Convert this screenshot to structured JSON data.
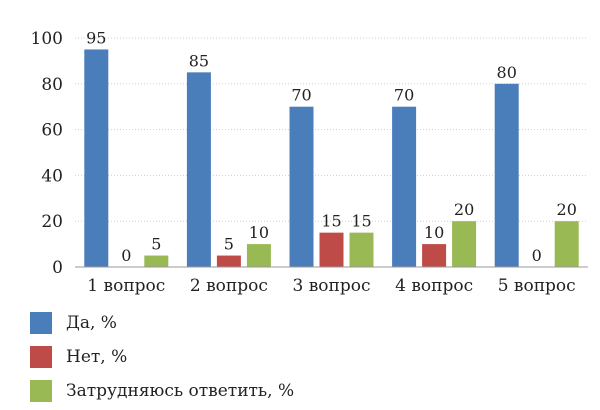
{
  "chart_data": {
    "type": "bar",
    "categories": [
      "1 вопрос",
      "2 вопрос",
      "3 вопрос",
      "4 вопрос",
      "5 вопрос"
    ],
    "series": [
      {
        "name": "Да, %",
        "color": "#4a7ebb",
        "values": [
          95,
          85,
          70,
          70,
          80
        ]
      },
      {
        "name": "Нет, %",
        "color": "#be4b48",
        "values": [
          0,
          5,
          15,
          10,
          0
        ]
      },
      {
        "name": "Затрудняюсь ответить, %",
        "color": "#98b954",
        "values": [
          5,
          10,
          15,
          20,
          20
        ]
      }
    ],
    "ylim": [
      0,
      100
    ],
    "yticks": [
      0,
      20,
      40,
      60,
      80,
      100
    ],
    "grid": true,
    "legend_position": "bottom-left"
  }
}
